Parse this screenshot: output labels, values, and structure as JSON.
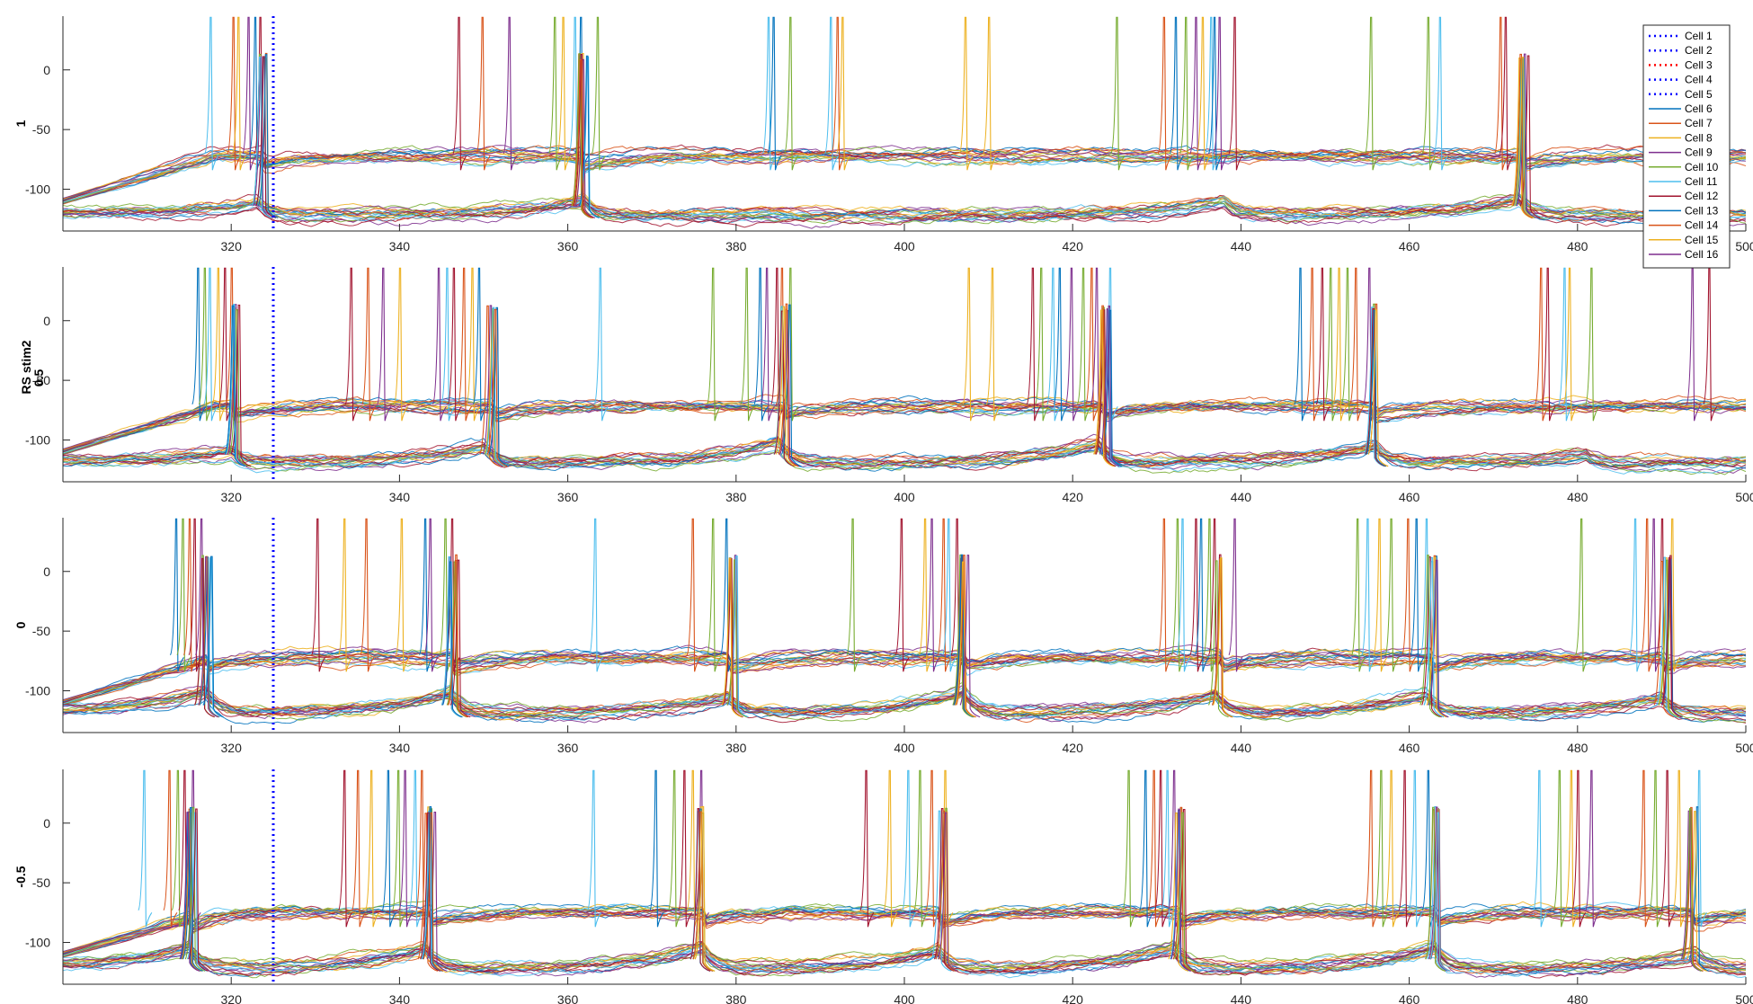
{
  "figure": {
    "ylabel_main": "RS stim2"
  },
  "chart_data": {
    "type": "line",
    "x_ticks": [
      320,
      340,
      360,
      380,
      400,
      420,
      440,
      460,
      480,
      500
    ],
    "y_ticks": [
      0,
      -50,
      -100
    ],
    "xlim": [
      300,
      500
    ],
    "ylim": [
      -135,
      45
    ],
    "grid": false,
    "stim_marker_x": 325,
    "legend_position": "top-right",
    "legend_entries": [
      {
        "name": "Cell 1",
        "color": "#0000ff",
        "style": "dotted"
      },
      {
        "name": "Cell 2",
        "color": "#0000ff",
        "style": "dotted"
      },
      {
        "name": "Cell 3",
        "color": "#ff0000",
        "style": "dotted"
      },
      {
        "name": "Cell 4",
        "color": "#0000ff",
        "style": "dotted"
      },
      {
        "name": "Cell 5",
        "color": "#0000ff",
        "style": "dotted"
      },
      {
        "name": "Cell 6",
        "color": "#0072bd",
        "style": "solid"
      },
      {
        "name": "Cell 7",
        "color": "#d95319",
        "style": "solid"
      },
      {
        "name": "Cell 8",
        "color": "#edb120",
        "style": "solid"
      },
      {
        "name": "Cell 9",
        "color": "#7e2f8e",
        "style": "solid"
      },
      {
        "name": "Cell 10",
        "color": "#77ac30",
        "style": "solid"
      },
      {
        "name": "Cell 11",
        "color": "#4dbeee",
        "style": "solid"
      },
      {
        "name": "Cell 12",
        "color": "#a2142f",
        "style": "solid"
      },
      {
        "name": "Cell 13",
        "color": "#0072bd",
        "style": "solid"
      },
      {
        "name": "Cell 14",
        "color": "#d95319",
        "style": "solid"
      },
      {
        "name": "Cell 15",
        "color": "#edb120",
        "style": "solid"
      },
      {
        "name": "Cell 16",
        "color": "#7e2f8e",
        "style": "solid"
      }
    ],
    "palette": [
      "#0072bd",
      "#d95319",
      "#edb120",
      "#7e2f8e",
      "#77ac30",
      "#4dbeee",
      "#a2142f"
    ],
    "panels": [
      {
        "label": "1",
        "baselines": {
          "high": -72,
          "low": -122
        },
        "spikes_high": [
          {
            "x": 317.5,
            "c": 5
          },
          {
            "x": 320.2,
            "c": 1
          },
          {
            "x": 320.8,
            "c": 2
          },
          {
            "x": 322.0,
            "c": 3
          },
          {
            "x": 322.8,
            "c": 0
          },
          {
            "x": 323.4,
            "c": 6
          },
          {
            "x": 347.0,
            "c": 6
          },
          {
            "x": 349.8,
            "c": 1
          },
          {
            "x": 353.0,
            "c": 3
          },
          {
            "x": 358.4,
            "c": 4
          },
          {
            "x": 359.4,
            "c": 2
          },
          {
            "x": 360.8,
            "c": 5
          },
          {
            "x": 361.5,
            "c": 0
          },
          {
            "x": 363.5,
            "c": 4
          },
          {
            "x": 383.8,
            "c": 5
          },
          {
            "x": 384.4,
            "c": 0
          },
          {
            "x": 386.4,
            "c": 4
          },
          {
            "x": 391.2,
            "c": 5
          },
          {
            "x": 392.0,
            "c": 1
          },
          {
            "x": 392.6,
            "c": 2
          },
          {
            "x": 407.2,
            "c": 2
          },
          {
            "x": 410.0,
            "c": 2
          },
          {
            "x": 425.2,
            "c": 4
          },
          {
            "x": 430.8,
            "c": 1
          },
          {
            "x": 432.2,
            "c": 0
          },
          {
            "x": 433.4,
            "c": 4
          },
          {
            "x": 434.6,
            "c": 3
          },
          {
            "x": 435.4,
            "c": 2
          },
          {
            "x": 436.4,
            "c": 5
          },
          {
            "x": 436.8,
            "c": 0
          },
          {
            "x": 437.4,
            "c": 3
          },
          {
            "x": 439.2,
            "c": 6
          },
          {
            "x": 455.4,
            "c": 4
          },
          {
            "x": 462.2,
            "c": 4
          },
          {
            "x": 463.6,
            "c": 5
          },
          {
            "x": 470.8,
            "c": 1
          },
          {
            "x": 471.4,
            "c": 6
          }
        ],
        "bursts": [
          {
            "x": 323.8,
            "h": 8
          },
          {
            "x": 361.8,
            "h": 8
          },
          {
            "x": 473.5,
            "h": 8
          }
        ],
        "low_humps": [
          {
            "x": 323,
            "h": 10
          },
          {
            "x": 362,
            "h": 12
          },
          {
            "x": 438,
            "h": 12
          },
          {
            "x": 473,
            "h": 14
          }
        ]
      },
      {
        "label": "0.5",
        "baselines": {
          "high": -72,
          "low": -120
        },
        "spikes_high": [
          {
            "x": 316.0,
            "c": 0
          },
          {
            "x": 316.8,
            "c": 4
          },
          {
            "x": 317.4,
            "c": 5
          },
          {
            "x": 318.4,
            "c": 2
          },
          {
            "x": 319.2,
            "c": 6
          },
          {
            "x": 320.0,
            "c": 1
          },
          {
            "x": 334.2,
            "c": 6
          },
          {
            "x": 336.2,
            "c": 1
          },
          {
            "x": 338.0,
            "c": 3
          },
          {
            "x": 340.0,
            "c": 2
          },
          {
            "x": 344.6,
            "c": 3
          },
          {
            "x": 345.6,
            "c": 5
          },
          {
            "x": 346.4,
            "c": 6
          },
          {
            "x": 347.6,
            "c": 1
          },
          {
            "x": 348.6,
            "c": 2
          },
          {
            "x": 349.4,
            "c": 0
          },
          {
            "x": 363.8,
            "c": 5
          },
          {
            "x": 377.2,
            "c": 4
          },
          {
            "x": 381.2,
            "c": 4
          },
          {
            "x": 382.8,
            "c": 0
          },
          {
            "x": 383.6,
            "c": 3
          },
          {
            "x": 384.8,
            "c": 6
          },
          {
            "x": 385.4,
            "c": 1
          },
          {
            "x": 386.4,
            "c": 4
          },
          {
            "x": 407.6,
            "c": 2
          },
          {
            "x": 410.4,
            "c": 2
          },
          {
            "x": 415.2,
            "c": 6
          },
          {
            "x": 416.2,
            "c": 4
          },
          {
            "x": 417.6,
            "c": 5
          },
          {
            "x": 418.4,
            "c": 0
          },
          {
            "x": 419.8,
            "c": 3
          },
          {
            "x": 421.2,
            "c": 4
          },
          {
            "x": 422.2,
            "c": 1
          },
          {
            "x": 422.8,
            "c": 3
          },
          {
            "x": 424.4,
            "c": 5
          },
          {
            "x": 447.0,
            "c": 0
          },
          {
            "x": 448.4,
            "c": 1
          },
          {
            "x": 449.6,
            "c": 6
          },
          {
            "x": 450.6,
            "c": 4
          },
          {
            "x": 451.6,
            "c": 2
          },
          {
            "x": 452.6,
            "c": 4
          },
          {
            "x": 453.6,
            "c": 1
          },
          {
            "x": 455.2,
            "c": 3
          },
          {
            "x": 475.6,
            "c": 1
          },
          {
            "x": 476.4,
            "c": 6
          },
          {
            "x": 478.4,
            "c": 5
          },
          {
            "x": 479.0,
            "c": 2
          },
          {
            "x": 481.6,
            "c": 4
          },
          {
            "x": 493.6,
            "c": 3
          },
          {
            "x": 495.6,
            "c": 6
          }
        ],
        "bursts": [
          {
            "x": 320.4,
            "h": 8
          },
          {
            "x": 351.0,
            "h": 8
          },
          {
            "x": 385.8,
            "h": 8
          },
          {
            "x": 423.8,
            "h": 8
          },
          {
            "x": 455.8,
            "h": 6
          }
        ],
        "low_humps": [
          {
            "x": 320,
            "h": 10
          },
          {
            "x": 350,
            "h": 14
          },
          {
            "x": 385,
            "h": 18
          },
          {
            "x": 423,
            "h": 16
          },
          {
            "x": 456,
            "h": 14
          },
          {
            "x": 481,
            "h": 8
          }
        ]
      },
      {
        "label": "0",
        "baselines": {
          "high": -72,
          "low": -120
        },
        "spikes_high": [
          {
            "x": 313.4,
            "c": 0
          },
          {
            "x": 314.2,
            "c": 4
          },
          {
            "x": 315.0,
            "c": 1
          },
          {
            "x": 315.6,
            "c": 6
          },
          {
            "x": 316.4,
            "c": 3
          },
          {
            "x": 330.2,
            "c": 6
          },
          {
            "x": 333.4,
            "c": 2
          },
          {
            "x": 336.0,
            "c": 1
          },
          {
            "x": 340.2,
            "c": 2
          },
          {
            "x": 343.0,
            "c": 0
          },
          {
            "x": 343.6,
            "c": 3
          },
          {
            "x": 345.4,
            "c": 4
          },
          {
            "x": 346.2,
            "c": 6
          },
          {
            "x": 363.2,
            "c": 5
          },
          {
            "x": 374.8,
            "c": 1
          },
          {
            "x": 377.2,
            "c": 4
          },
          {
            "x": 378.8,
            "c": 0
          },
          {
            "x": 393.8,
            "c": 4
          },
          {
            "x": 399.6,
            "c": 6
          },
          {
            "x": 402.4,
            "c": 2
          },
          {
            "x": 403.2,
            "c": 3
          },
          {
            "x": 404.6,
            "c": 1
          },
          {
            "x": 405.2,
            "c": 5
          },
          {
            "x": 406.2,
            "c": 6
          },
          {
            "x": 430.8,
            "c": 1
          },
          {
            "x": 432.4,
            "c": 4
          },
          {
            "x": 433.0,
            "c": 5
          },
          {
            "x": 434.6,
            "c": 6
          },
          {
            "x": 435.2,
            "c": 0
          },
          {
            "x": 436.2,
            "c": 4
          },
          {
            "x": 436.8,
            "c": 6
          },
          {
            "x": 439.2,
            "c": 3
          },
          {
            "x": 453.8,
            "c": 4
          },
          {
            "x": 455.0,
            "c": 5
          },
          {
            "x": 456.4,
            "c": 2
          },
          {
            "x": 457.8,
            "c": 4
          },
          {
            "x": 459.8,
            "c": 1
          },
          {
            "x": 460.8,
            "c": 0
          },
          {
            "x": 462.0,
            "c": 5
          },
          {
            "x": 480.4,
            "c": 4
          },
          {
            "x": 486.8,
            "c": 5
          },
          {
            "x": 488.2,
            "c": 1
          },
          {
            "x": 489.0,
            "c": 3
          },
          {
            "x": 490.0,
            "c": 6
          },
          {
            "x": 491.2,
            "c": 2
          }
        ],
        "bursts": [
          {
            "x": 317.0,
            "h": 8
          },
          {
            "x": 346.4,
            "h": 8
          },
          {
            "x": 379.4,
            "h": 8
          },
          {
            "x": 407.2,
            "h": 8
          },
          {
            "x": 437.6,
            "h": 6
          },
          {
            "x": 462.6,
            "h": 8
          },
          {
            "x": 490.4,
            "h": 8
          }
        ],
        "low_humps": [
          {
            "x": 317,
            "h": 18
          },
          {
            "x": 346,
            "h": 18
          },
          {
            "x": 379,
            "h": 14
          },
          {
            "x": 407,
            "h": 18
          },
          {
            "x": 437,
            "h": 16
          },
          {
            "x": 462,
            "h": 16
          },
          {
            "x": 490,
            "h": 14
          }
        ]
      },
      {
        "label": "-0.5",
        "baselines": {
          "high": -75,
          "low": -122
        },
        "spikes_high": [
          {
            "x": 309.6,
            "c": 5
          },
          {
            "x": 312.6,
            "c": 1
          },
          {
            "x": 313.6,
            "c": 4
          },
          {
            "x": 314.4,
            "c": 6
          },
          {
            "x": 315.4,
            "c": 3
          },
          {
            "x": 333.4,
            "c": 6
          },
          {
            "x": 335.0,
            "c": 1
          },
          {
            "x": 336.6,
            "c": 2
          },
          {
            "x": 338.6,
            "c": 0
          },
          {
            "x": 339.8,
            "c": 4
          },
          {
            "x": 340.6,
            "c": 3
          },
          {
            "x": 341.8,
            "c": 5
          },
          {
            "x": 342.6,
            "c": 1
          },
          {
            "x": 363.0,
            "c": 5
          },
          {
            "x": 370.4,
            "c": 0
          },
          {
            "x": 372.6,
            "c": 4
          },
          {
            "x": 373.8,
            "c": 6
          },
          {
            "x": 374.8,
            "c": 2
          },
          {
            "x": 375.8,
            "c": 3
          },
          {
            "x": 395.4,
            "c": 6
          },
          {
            "x": 398.2,
            "c": 2
          },
          {
            "x": 400.4,
            "c": 5
          },
          {
            "x": 401.8,
            "c": 4
          },
          {
            "x": 403.2,
            "c": 1
          },
          {
            "x": 404.8,
            "c": 2
          },
          {
            "x": 426.6,
            "c": 4
          },
          {
            "x": 428.6,
            "c": 0
          },
          {
            "x": 429.6,
            "c": 1
          },
          {
            "x": 430.4,
            "c": 6
          },
          {
            "x": 431.2,
            "c": 5
          },
          {
            "x": 432.0,
            "c": 3
          },
          {
            "x": 455.4,
            "c": 1
          },
          {
            "x": 456.6,
            "c": 4
          },
          {
            "x": 457.8,
            "c": 2
          },
          {
            "x": 459.4,
            "c": 6
          },
          {
            "x": 460.6,
            "c": 5
          },
          {
            "x": 462.2,
            "c": 0
          },
          {
            "x": 475.4,
            "c": 5
          },
          {
            "x": 477.8,
            "c": 4
          },
          {
            "x": 479.2,
            "c": 2
          },
          {
            "x": 480.0,
            "c": 6
          },
          {
            "x": 481.6,
            "c": 3
          },
          {
            "x": 487.8,
            "c": 1
          },
          {
            "x": 489.2,
            "c": 4
          },
          {
            "x": 490.6,
            "c": 6
          },
          {
            "x": 492.0,
            "c": 2
          },
          {
            "x": 494.4,
            "c": 5
          }
        ],
        "bursts": [
          {
            "x": 315.2,
            "h": 8
          },
          {
            "x": 343.6,
            "h": 8
          },
          {
            "x": 376.0,
            "h": 8
          },
          {
            "x": 404.4,
            "h": 8
          },
          {
            "x": 432.8,
            "h": 8
          },
          {
            "x": 463.2,
            "h": 8
          },
          {
            "x": 493.6,
            "h": 6
          }
        ],
        "low_humps": [
          {
            "x": 315,
            "h": 18
          },
          {
            "x": 343,
            "h": 18
          },
          {
            "x": 376,
            "h": 18
          },
          {
            "x": 404,
            "h": 16
          },
          {
            "x": 432,
            "h": 18
          },
          {
            "x": 463,
            "h": 18
          },
          {
            "x": 494,
            "h": 12
          }
        ]
      }
    ]
  }
}
